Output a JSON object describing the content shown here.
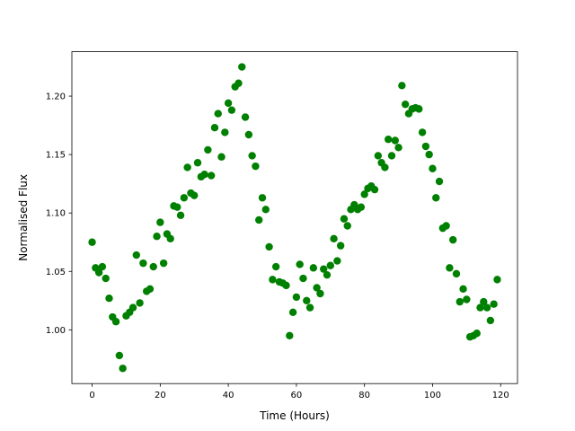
{
  "chart_data": {
    "type": "scatter",
    "x_label": "Time (Hours)",
    "y_label": "Normalised Flux",
    "color": "#008000",
    "x": [
      0,
      1,
      2,
      3,
      4,
      5,
      6,
      7,
      8,
      9,
      10,
      11,
      12,
      13,
      14,
      15,
      16,
      17,
      18,
      19,
      20,
      21,
      22,
      23,
      24,
      25,
      26,
      27,
      28,
      29,
      30,
      31,
      32,
      33,
      34,
      35,
      36,
      37,
      38,
      39,
      40,
      41,
      42,
      43,
      44,
      45,
      46,
      47,
      48,
      49,
      50,
      51,
      52,
      53,
      54,
      55,
      56,
      57,
      58,
      59,
      60,
      61,
      62,
      63,
      64,
      65,
      66,
      67,
      68,
      69,
      70,
      71,
      72,
      73,
      74,
      75,
      76,
      77,
      78,
      79,
      80,
      81,
      82,
      83,
      84,
      85,
      86,
      87,
      88,
      89,
      90,
      91,
      92,
      93,
      94,
      95,
      96,
      97,
      98,
      99,
      100,
      101,
      102,
      103,
      104,
      105,
      106,
      107,
      108,
      109,
      110,
      111,
      112,
      113,
      114,
      115,
      116,
      117,
      118,
      119
    ],
    "values": [
      1.075,
      1.053,
      1.049,
      1.054,
      1.044,
      1.027,
      1.011,
      1.007,
      0.978,
      0.967,
      1.012,
      1.015,
      1.019,
      1.064,
      1.023,
      1.057,
      1.033,
      1.035,
      1.054,
      1.08,
      1.092,
      1.057,
      1.082,
      1.078,
      1.106,
      1.105,
      1.098,
      1.113,
      1.139,
      1.117,
      1.115,
      1.143,
      1.131,
      1.133,
      1.154,
      1.132,
      1.173,
      1.185,
      1.148,
      1.169,
      1.194,
      1.188,
      1.208,
      1.211,
      1.225,
      1.182,
      1.167,
      1.149,
      1.14,
      1.094,
      1.113,
      1.103,
      1.071,
      1.043,
      1.054,
      1.041,
      1.04,
      1.038,
      0.995,
      1.015,
      1.028,
      1.056,
      1.044,
      1.025,
      1.019,
      1.053,
      1.036,
      1.031,
      1.052,
      1.047,
      1.055,
      1.078,
      1.059,
      1.072,
      1.095,
      1.089,
      1.103,
      1.107,
      1.103,
      1.105,
      1.116,
      1.121,
      1.123,
      1.12,
      1.149,
      1.143,
      1.139,
      1.163,
      1.149,
      1.162,
      1.156,
      1.209,
      1.193,
      1.185,
      1.189,
      1.19,
      1.189,
      1.169,
      1.157,
      1.15,
      1.138,
      1.113,
      1.127,
      1.087,
      1.089,
      1.053,
      1.077,
      1.048,
      1.024,
      1.035,
      1.026,
      0.994,
      0.995,
      0.997,
      1.019,
      1.024,
      1.019,
      1.008,
      1.022,
      1.043
    ],
    "xlim": [
      -5.95,
      124.95
    ],
    "ylim": [
      0.954,
      1.238
    ],
    "xticks": [
      0,
      20,
      40,
      60,
      80,
      100,
      120
    ],
    "yticks": [
      {
        "value": 1.0,
        "label": "1.00"
      },
      1.05,
      {
        "value": 1.1,
        "label": "1.10"
      },
      1.15,
      {
        "value": 1.2,
        "label": "1.20"
      }
    ]
  }
}
